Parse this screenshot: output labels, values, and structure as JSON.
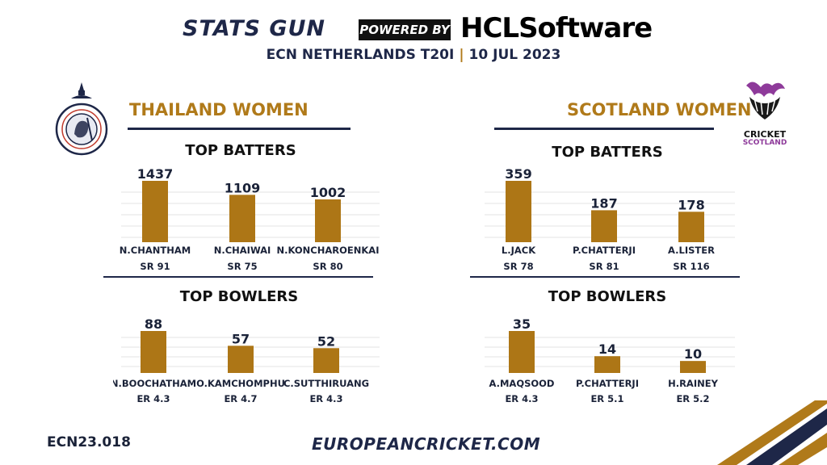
{
  "header": {
    "brand_left": "STATS GUN",
    "powered_by": "POWERED BY",
    "brand_right": "HCLSoftware",
    "event": "ECN NETHERLANDS T20I",
    "date": "10 JUL 2023"
  },
  "teams": {
    "left": {
      "name": "THAILAND WOMEN",
      "batters_title": "TOP BATTERS",
      "bowlers_title": "TOP BOWLERS"
    },
    "right": {
      "name": "SCOTLAND WOMEN",
      "batters_title": "TOP BATTERS",
      "bowlers_title": "TOP BOWLERS",
      "logo_text_1": "CRICKET",
      "logo_text_2": "SCOTLAND"
    }
  },
  "colors": {
    "bar": "#ad7616",
    "navy": "#1e2748",
    "gold": "#b07a1a"
  },
  "chart_data": [
    {
      "type": "bar",
      "title": "TOP BATTERS",
      "team": "THAILAND WOMEN",
      "categories": [
        "N.CHANTHAM",
        "N.CHAIWAI",
        "N.KONCHAROENKAI"
      ],
      "values": [
        1437,
        1109,
        1002
      ],
      "stats": [
        "SR 91",
        "SR 75",
        "SR 80"
      ],
      "ylim": [
        0,
        1437
      ]
    },
    {
      "type": "bar",
      "title": "TOP BATTERS",
      "team": "SCOTLAND WOMEN",
      "categories": [
        "L.JACK",
        "P.CHATTERJI",
        "A.LISTER"
      ],
      "values": [
        359,
        187,
        178
      ],
      "stats": [
        "SR 78",
        "SR 81",
        "SR 116"
      ],
      "ylim": [
        0,
        359
      ]
    },
    {
      "type": "bar",
      "title": "TOP BOWLERS",
      "team": "THAILAND WOMEN",
      "categories": [
        "N.BOOCHATHAM",
        "O.KAMCHOMPHU",
        "C.SUTTHIRUANG"
      ],
      "values": [
        88,
        57,
        52
      ],
      "stats": [
        "ER 4.3",
        "ER 4.7",
        "ER 4.3"
      ],
      "ylim": [
        0,
        88
      ]
    },
    {
      "type": "bar",
      "title": "TOP BOWLERS",
      "team": "SCOTLAND WOMEN",
      "categories": [
        "A.MAQSOOD",
        "P.CHATTERJI",
        "H.RAINEY"
      ],
      "values": [
        35,
        14,
        10
      ],
      "stats": [
        "ER 4.3",
        "ER 5.1",
        "ER 5.2"
      ],
      "ylim": [
        0,
        35
      ]
    }
  ],
  "footer": {
    "code": "ECN23.018",
    "url": "EUROPEANCRICKET.COM"
  }
}
